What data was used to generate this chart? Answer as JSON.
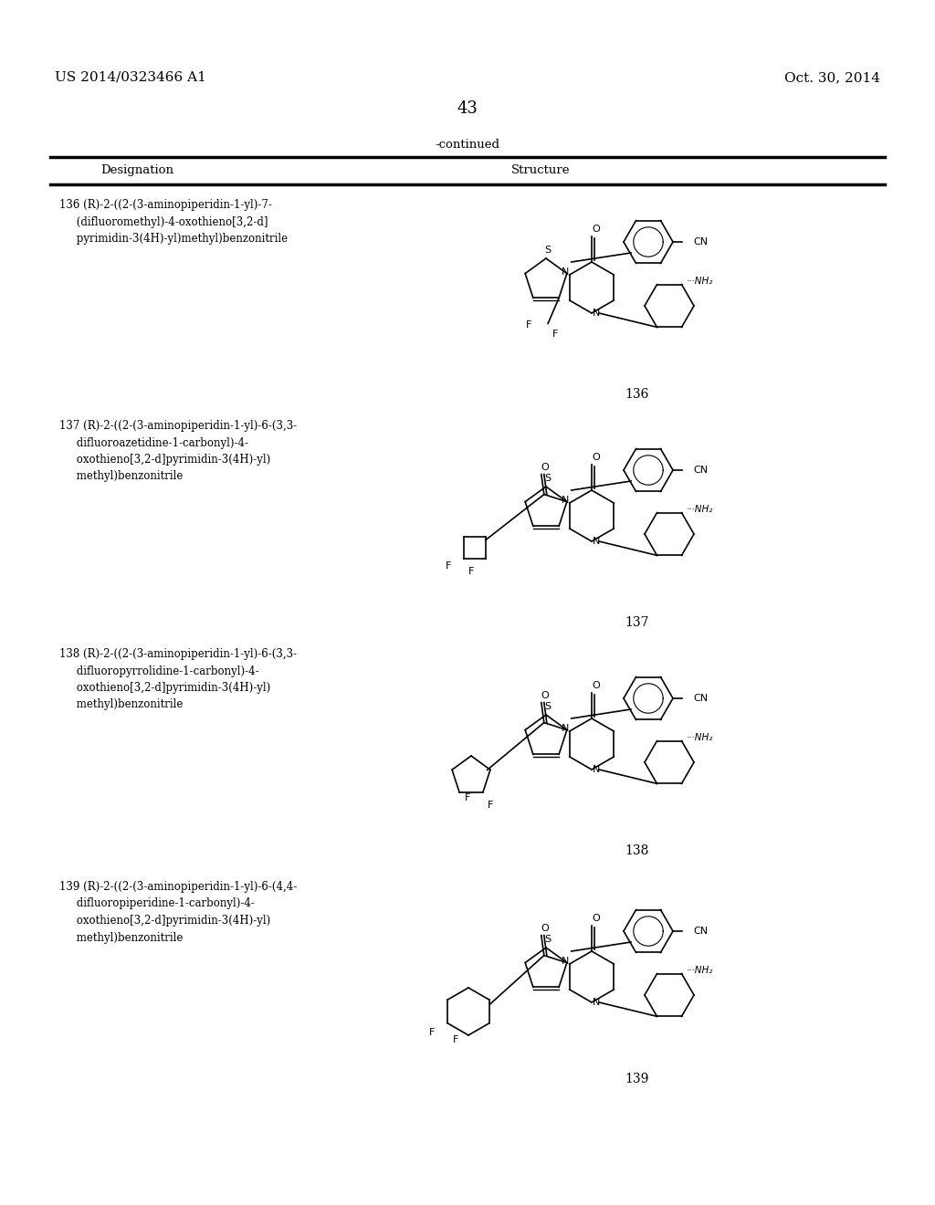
{
  "page_number": "43",
  "left_header": "US 2014/0323466 A1",
  "right_header": "Oct. 30, 2014",
  "continued_label": "-continued",
  "table_header_left": "Designation",
  "table_header_right": "Structure",
  "background_color": "#ffffff",
  "text_color": "#000000",
  "compounds": [
    {
      "number": "136",
      "designation": "136 (R)-2-((2-(3-aminopiperidin-1-yl)-7-\n     (difluoromethyl)-4-oxothieno[3,2-d]\n     pyrimidin-3(4H)-yl)methyl)benzonitrile",
      "label": "136"
    },
    {
      "number": "137",
      "designation": "137 (R)-2-((2-(3-aminopiperidin-1-yl)-6-(3,3-\n     difluoroazetidine-1-carbonyl)-4-\n     oxothieno[3,2-d]pyrimidin-3(4H)-yl)\n     methyl)benzonitrile",
      "label": "137"
    },
    {
      "number": "138",
      "designation": "138 (R)-2-((2-(3-aminopiperidin-1-yl)-6-(3,3-\n     difluoropyrrolidine-1-carbonyl)-4-\n     oxothieno[3,2-d]pyrimidin-3(4H)-yl)\n     methyl)benzonitrile",
      "label": "138"
    },
    {
      "number": "139",
      "designation": "139 (R)-2-((2-(3-aminopiperidin-1-yl)-6-(4,4-\n     difluoropiperidine-1-carbonyl)-4-\n     oxothieno[3,2-d]pyrimidin-3(4H)-yl)\n     methyl)benzonitrile",
      "label": "139"
    }
  ]
}
